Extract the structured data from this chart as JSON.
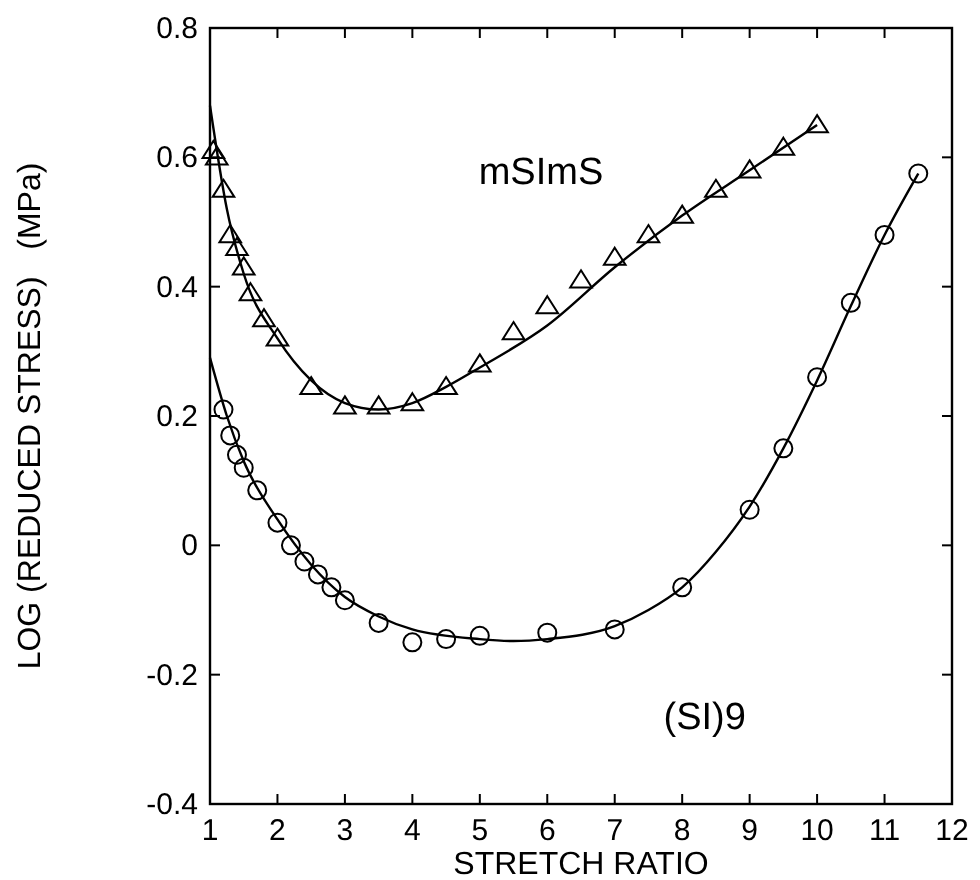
{
  "chart_data": {
    "type": "scatter",
    "xlabel": "STRETCH RATIO",
    "ylabel": "LOG (REDUCED STRESS)   (MPa)",
    "xlim": [
      1,
      12
    ],
    "ylim": [
      -0.4,
      0.8
    ],
    "xticks": [
      1,
      2,
      3,
      4,
      5,
      6,
      7,
      8,
      9,
      10,
      11,
      12
    ],
    "yticks": [
      -0.4,
      -0.2,
      0,
      0.2,
      0.4,
      0.6,
      0.8
    ],
    "grid": false,
    "series": [
      {
        "name": "mSImS",
        "color": "#000000",
        "marker": "triangle",
        "x": [
          1.05,
          1.1,
          1.2,
          1.3,
          1.4,
          1.5,
          1.6,
          1.8,
          2,
          2.5,
          3,
          3.5,
          4,
          4.5,
          5,
          5.5,
          6,
          6.5,
          7,
          7.5,
          8,
          8.5,
          9,
          9.5,
          10
        ],
        "values": [
          0.61,
          0.6,
          0.55,
          0.48,
          0.46,
          0.43,
          0.39,
          0.35,
          0.32,
          0.245,
          0.215,
          0.215,
          0.22,
          0.245,
          0.28,
          0.33,
          0.37,
          0.41,
          0.445,
          0.48,
          0.51,
          0.55,
          0.58,
          0.615,
          0.65
        ]
      },
      {
        "name": "(SI)9",
        "color": "#000000",
        "marker": "circle",
        "x": [
          1.2,
          1.3,
          1.4,
          1.5,
          1.7,
          2,
          2.2,
          2.4,
          2.6,
          2.8,
          3,
          3.5,
          4,
          4.5,
          5,
          6,
          7,
          8,
          9,
          9.5,
          10,
          10.5,
          11,
          11.5
        ],
        "values": [
          0.21,
          0.17,
          0.14,
          0.12,
          0.085,
          0.035,
          0,
          -0.025,
          -0.045,
          -0.065,
          -0.085,
          -0.12,
          -0.15,
          -0.145,
          -0.14,
          -0.135,
          -0.13,
          -0.065,
          0.055,
          0.15,
          0.26,
          0.375,
          0.48,
          0.575
        ]
      },
      {
        "type": "line",
        "color": "#000000",
        "marker": "none",
        "line_style": "solid",
        "x": [
          1,
          1.25,
          1.5,
          2,
          2.5,
          3,
          3.5,
          4,
          4.5,
          5,
          6,
          7,
          8,
          9,
          10
        ],
        "values": [
          0.68,
          0.52,
          0.42,
          0.32,
          0.255,
          0.22,
          0.21,
          0.22,
          0.245,
          0.275,
          0.34,
          0.43,
          0.51,
          0.58,
          0.65
        ]
      },
      {
        "type": "line",
        "color": "#000000",
        "marker": "none",
        "line_style": "solid",
        "x": [
          1,
          1.25,
          1.5,
          2,
          2.5,
          3,
          3.5,
          4,
          5,
          5.5,
          6,
          7,
          7.5,
          8,
          8.5,
          9,
          9.5,
          10,
          10.5,
          11,
          11.5
        ],
        "values": [
          0.29,
          0.2,
          0.13,
          0.04,
          -0.03,
          -0.08,
          -0.11,
          -0.13,
          -0.145,
          -0.148,
          -0.145,
          -0.125,
          -0.1,
          -0.065,
          -0.01,
          0.06,
          0.15,
          0.255,
          0.37,
          0.48,
          0.575
        ]
      }
    ]
  }
}
